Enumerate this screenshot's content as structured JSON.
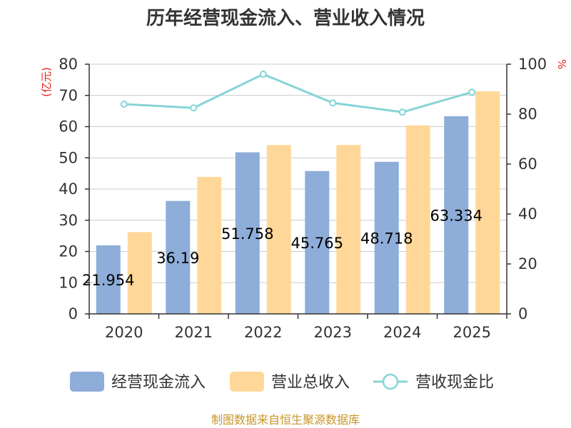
{
  "title": "历年经营现金流入、营业收入情况",
  "source": "制图数据来自恒生聚源数据库",
  "colors": {
    "inflow": "#8eadd9",
    "revenue": "#ffd899",
    "ratio": "#87d4d6",
    "unit_red": "#e8201a",
    "source": "#c8952a"
  },
  "chart_data": {
    "type": "bar",
    "title": "历年经营现金流入、营业收入情况",
    "categories": [
      "2020",
      "2021",
      "2022",
      "2023",
      "2024",
      "2025"
    ],
    "y_left": {
      "unit": "(亿元)",
      "min": 0,
      "max": 80,
      "ticks": [
        0,
        10,
        20,
        30,
        40,
        50,
        60,
        70,
        80
      ]
    },
    "y_right": {
      "unit": "%",
      "min": 0,
      "max": 100,
      "ticks": [
        0,
        20,
        40,
        60,
        80,
        100
      ]
    },
    "grid": true,
    "legend_position": "bottom",
    "series": [
      {
        "name": "经营现金流入",
        "type": "bar",
        "axis": "left",
        "values": [
          21.954,
          36.19,
          51.758,
          45.765,
          48.718,
          63.334
        ],
        "labels": [
          "21.954",
          "36.19",
          "51.758",
          "45.765",
          "48.718",
          "63.334"
        ]
      },
      {
        "name": "营业总收入",
        "type": "bar",
        "axis": "left",
        "values": [
          26.2,
          43.9,
          54.1,
          54.1,
          60.4,
          71.3
        ]
      },
      {
        "name": "营收现金比",
        "type": "line",
        "axis": "right",
        "values": [
          84,
          82.5,
          96,
          84.5,
          80.8,
          88.8
        ]
      }
    ]
  }
}
